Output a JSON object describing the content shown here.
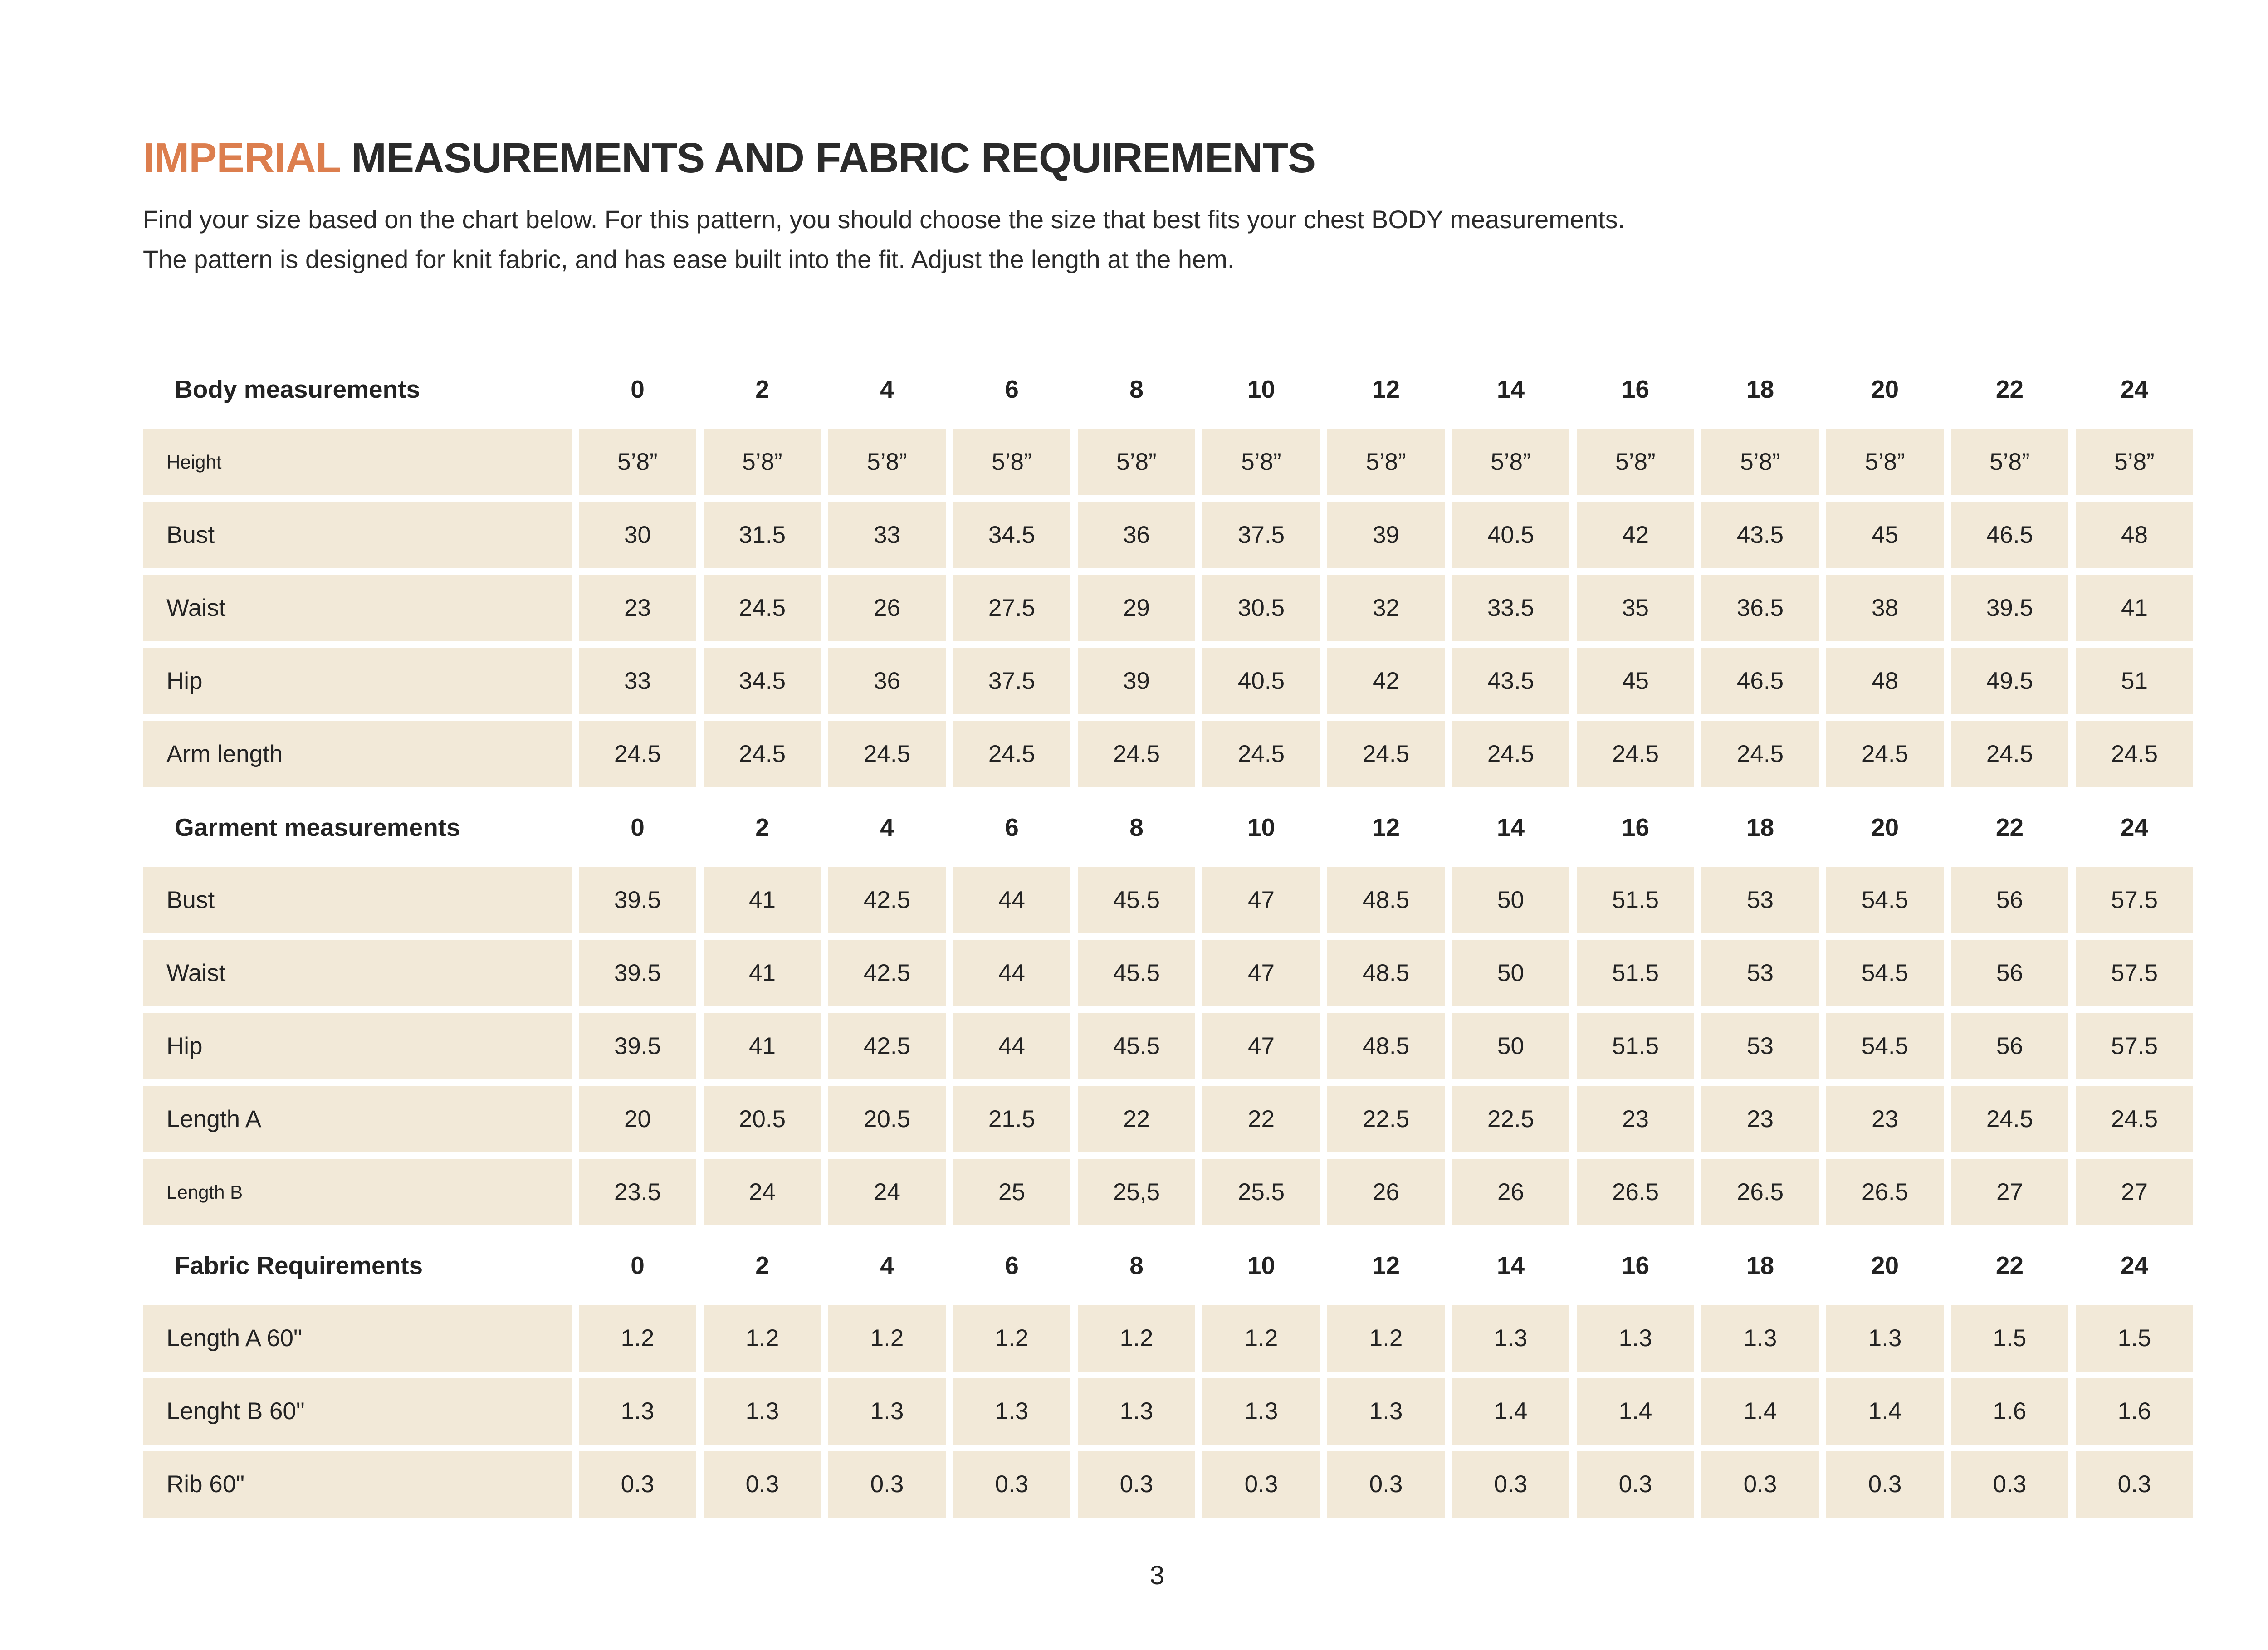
{
  "title": {
    "highlight": "IMPERIAL",
    "rest": "MEASUREMENTS AND FABRIC REQUIREMENTS"
  },
  "intro": {
    "line1": "Find your size based on the chart below. For this pattern, you should choose the size that best fits your chest BODY measurements.",
    "line2": "The pattern is designed for knit fabric, and has ease built into the fit. Adjust the length at the hem."
  },
  "colors": {
    "accent_orange": "#dc7e4e",
    "row_beige": "#f2e9d8",
    "text_dark": "#2b2b2b"
  },
  "table": {
    "size_labels": [
      "0",
      "2",
      "4",
      "6",
      "8",
      "10",
      "12",
      "14",
      "16",
      "18",
      "20",
      "22",
      "24"
    ],
    "sections": [
      {
        "header": "Body measurements",
        "rows": [
          {
            "label": "Height",
            "small": true,
            "values": [
              "5’8”",
              "5’8”",
              "5’8”",
              "5’8”",
              "5’8”",
              "5’8”",
              "5’8”",
              "5’8”",
              "5’8”",
              "5’8”",
              "5’8”",
              "5’8”",
              "5’8”"
            ]
          },
          {
            "label": "Bust",
            "values": [
              "30",
              "31.5",
              "33",
              "34.5",
              "36",
              "37.5",
              "39",
              "40.5",
              "42",
              "43.5",
              "45",
              "46.5",
              "48"
            ]
          },
          {
            "label": "Waist",
            "values": [
              "23",
              "24.5",
              "26",
              "27.5",
              "29",
              "30.5",
              "32",
              "33.5",
              "35",
              "36.5",
              "38",
              "39.5",
              "41"
            ]
          },
          {
            "label": "Hip",
            "values": [
              "33",
              "34.5",
              "36",
              "37.5",
              "39",
              "40.5",
              "42",
              "43.5",
              "45",
              "46.5",
              "48",
              "49.5",
              "51"
            ]
          },
          {
            "label": "Arm length",
            "values": [
              "24.5",
              "24.5",
              "24.5",
              "24.5",
              "24.5",
              "24.5",
              "24.5",
              "24.5",
              "24.5",
              "24.5",
              "24.5",
              "24.5",
              "24.5"
            ]
          }
        ]
      },
      {
        "header": "Garment measurements",
        "rows": [
          {
            "label": "Bust",
            "values": [
              "39.5",
              "41",
              "42.5",
              "44",
              "45.5",
              "47",
              "48.5",
              "50",
              "51.5",
              "53",
              "54.5",
              "56",
              "57.5"
            ]
          },
          {
            "label": "Waist",
            "values": [
              "39.5",
              "41",
              "42.5",
              "44",
              "45.5",
              "47",
              "48.5",
              "50",
              "51.5",
              "53",
              "54.5",
              "56",
              "57.5"
            ]
          },
          {
            "label": "Hip",
            "values": [
              "39.5",
              "41",
              "42.5",
              "44",
              "45.5",
              "47",
              "48.5",
              "50",
              "51.5",
              "53",
              "54.5",
              "56",
              "57.5"
            ]
          },
          {
            "label": "Length A",
            "values": [
              "20",
              "20.5",
              "20.5",
              "21.5",
              "22",
              "22",
              "22.5",
              "22.5",
              "23",
              "23",
              "23",
              "24.5",
              "24.5"
            ]
          },
          {
            "label": "Length B",
            "small": true,
            "values": [
              "23.5",
              "24",
              "24",
              "25",
              "25,5",
              "25.5",
              "26",
              "26",
              "26.5",
              "26.5",
              "26.5",
              "27",
              "27"
            ]
          }
        ]
      },
      {
        "header": "Fabric Requirements",
        "rows": [
          {
            "label": "Length A 60\"",
            "values": [
              "1.2",
              "1.2",
              "1.2",
              "1.2",
              "1.2",
              "1.2",
              "1.2",
              "1.3",
              "1.3",
              "1.3",
              "1.3",
              "1.5",
              "1.5"
            ]
          },
          {
            "label": "Lenght B 60\"",
            "values": [
              "1.3",
              "1.3",
              "1.3",
              "1.3",
              "1.3",
              "1.3",
              "1.3",
              "1.4",
              "1.4",
              "1.4",
              "1.4",
              "1.6",
              "1.6"
            ]
          },
          {
            "label": "Rib 60\"",
            "values": [
              "0.3",
              "0.3",
              "0.3",
              "0.3",
              "0.3",
              "0.3",
              "0.3",
              "0.3",
              "0.3",
              "0.3",
              "0.3",
              "0.3",
              "0.3"
            ]
          }
        ]
      }
    ]
  },
  "footer": {
    "page_number": "3"
  }
}
